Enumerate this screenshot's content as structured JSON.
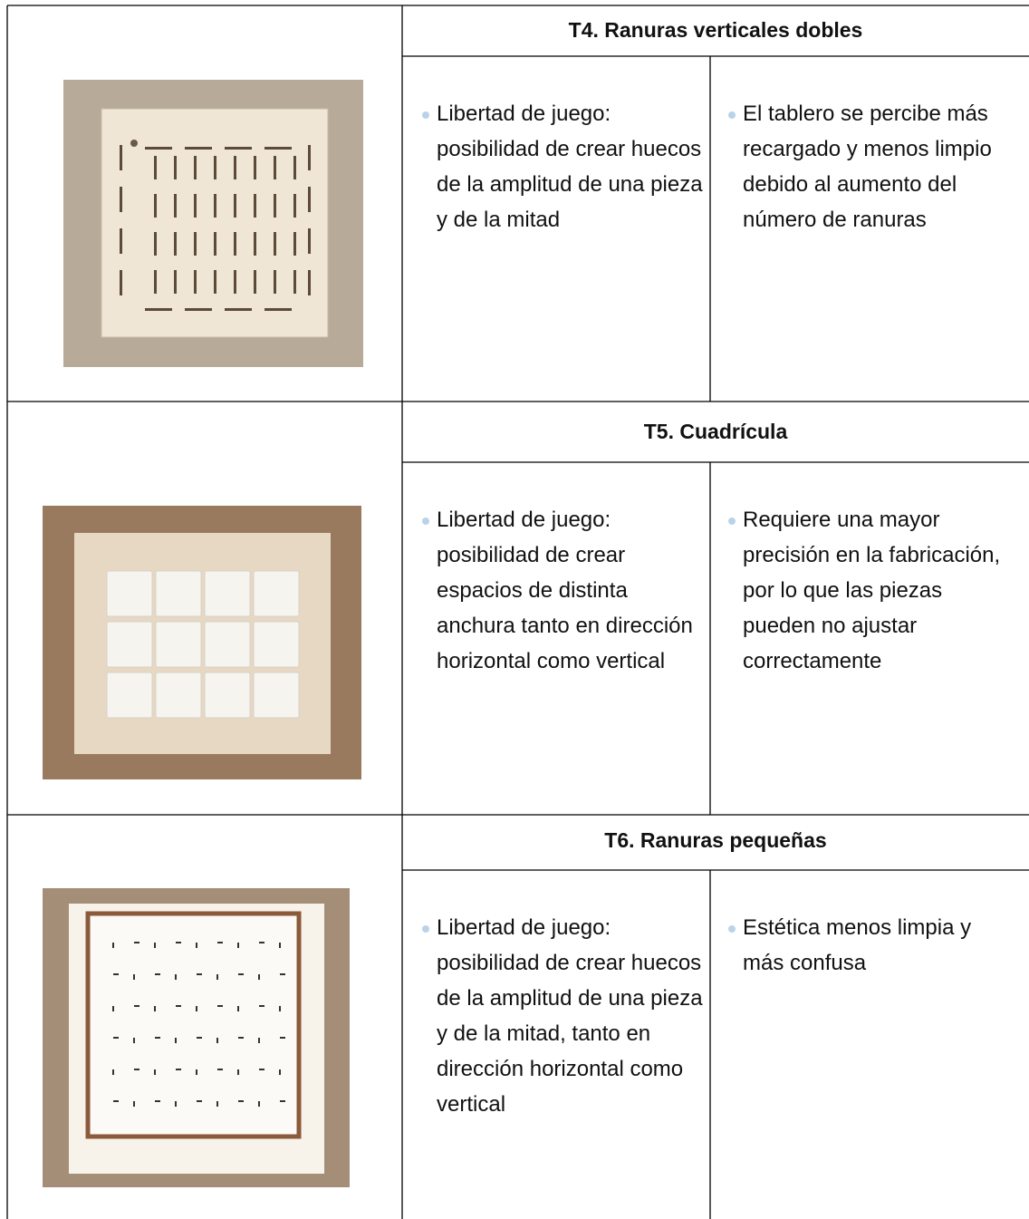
{
  "table": {
    "rows": [
      {
        "title": "T4. Ranuras verticales dobles",
        "pros": "Libertad de juego: posibilidad de crear huecos de la amplitud de una pieza y de la mitad",
        "cons": "El tablero se percibe más recargado y menos limpio debido al aumento del número de ranuras"
      },
      {
        "title": "T5. Cuadrícula",
        "pros": "Libertad de juego: posibilidad de crear espacios de distinta anchura tanto en dirección horizontal como vertical",
        "cons": "Requiere una mayor precisión en la fabricación, por lo que las piezas pueden no ajustar correctamente"
      },
      {
        "title": "T6. Ranuras pequeñas",
        "pros": "Libertad de juego: posibilidad de crear huecos de la amplitud de una pieza y de la mitad, tanto en dirección horizontal como vertical",
        "cons": "Estética menos limpia y más confusa"
      }
    ]
  }
}
